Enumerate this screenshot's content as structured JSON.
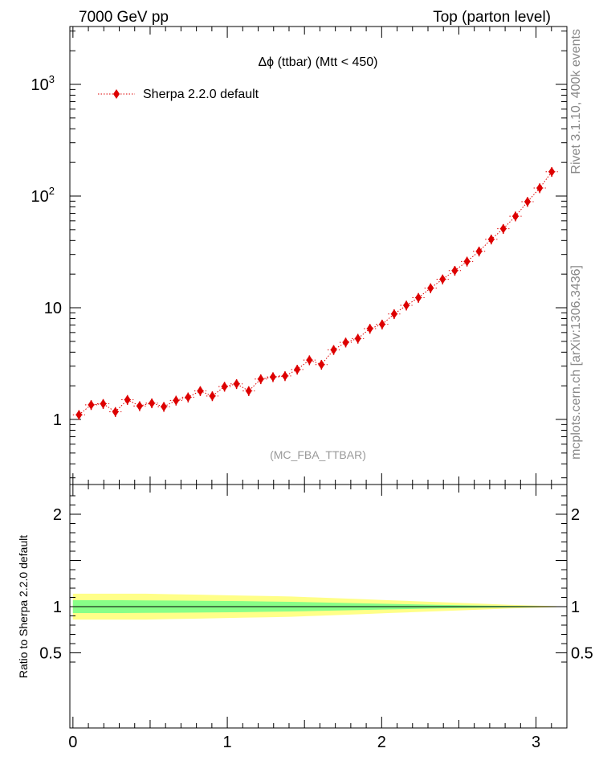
{
  "header": {
    "left": "7000 GeV pp",
    "right": "Top (parton level)"
  },
  "side_label": "mcplots.cern.ch [arXiv:1306.3436]",
  "rivet_label": "Rivet 3.1.10,  400k events",
  "watermark": "(MC_FBA_TTBAR)",
  "colors": {
    "series": "#dd0000",
    "band_outer": "#ffff88",
    "band_inner": "#88ff88",
    "side_text": "#888888"
  },
  "chart_data": [
    {
      "type": "scatter",
      "title": "Δϕ (ttbar) (Mtt < 450)",
      "yscale": "log",
      "xlim": [
        -0.02,
        3.2
      ],
      "ylim": [
        0.27,
        3000
      ],
      "yticks": [
        {
          "value": 1000,
          "label": "10",
          "sup": "3"
        },
        {
          "value": 100,
          "label": "10",
          "sup": "2"
        },
        {
          "value": 10,
          "label": "10",
          "sup": ""
        },
        {
          "value": 1,
          "label": "1",
          "sup": ""
        }
      ],
      "legend": "top-left",
      "series": [
        {
          "name": "Sherpa 2.2.0 default",
          "x": [
            0.039,
            0.118,
            0.196,
            0.275,
            0.353,
            0.432,
            0.511,
            0.589,
            0.668,
            0.746,
            0.825,
            0.903,
            0.982,
            1.06,
            1.139,
            1.217,
            1.296,
            1.374,
            1.453,
            1.532,
            1.61,
            1.689,
            1.767,
            1.846,
            1.924,
            2.003,
            2.081,
            2.16,
            2.238,
            2.317,
            2.395,
            2.474,
            2.553,
            2.631,
            2.71,
            2.788,
            2.867,
            2.945,
            3.024,
            3.102
          ],
          "y": [
            1.1,
            1.35,
            1.38,
            1.17,
            1.5,
            1.32,
            1.4,
            1.3,
            1.48,
            1.58,
            1.8,
            1.62,
            1.97,
            2.08,
            1.8,
            2.3,
            2.4,
            2.45,
            2.8,
            3.4,
            3.1,
            4.2,
            4.9,
            5.3,
            6.5,
            7.1,
            8.8,
            10.5,
            12.3,
            15,
            18,
            21.5,
            26,
            32,
            41,
            51,
            66,
            89,
            118,
            165
          ],
          "yerr_rel": 0.1
        }
      ]
    },
    {
      "type": "area",
      "ylabel": "Ratio to Sherpa 2.2.0 default",
      "xlim": [
        -0.02,
        3.2
      ],
      "ylim": [
        0.35,
        2.3
      ],
      "xticks": [
        0,
        1,
        2,
        3
      ],
      "yticks": [
        0.5,
        1,
        2
      ],
      "reference": 1,
      "band_x": [
        0,
        0.157,
        0.314,
        0.471,
        0.628,
        0.785,
        0.942,
        1.1,
        1.257,
        1.414,
        1.571,
        1.728,
        1.885,
        2.042,
        2.199,
        2.356,
        2.513,
        2.67,
        2.827,
        2.985,
        3.142
      ],
      "outer_halfwidth": [
        0.14,
        0.14,
        0.14,
        0.14,
        0.135,
        0.13,
        0.125,
        0.12,
        0.115,
        0.11,
        0.1,
        0.09,
        0.08,
        0.07,
        0.06,
        0.05,
        0.04,
        0.03,
        0.02,
        0.012,
        0.005
      ],
      "inner_halfwidth": [
        0.07,
        0.07,
        0.07,
        0.068,
        0.066,
        0.064,
        0.062,
        0.06,
        0.056,
        0.052,
        0.047,
        0.042,
        0.036,
        0.03,
        0.025,
        0.02,
        0.015,
        0.011,
        0.008,
        0.005,
        0.002
      ]
    }
  ]
}
